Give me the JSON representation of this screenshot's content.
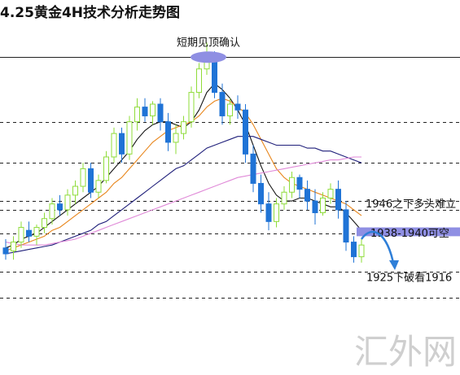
{
  "title": "4.25黄金4H技术分析走势图",
  "watermark": "汇外网",
  "colors": {
    "up": "#8fdc3a",
    "down": "#1f73d6",
    "ma_fast": "#151515",
    "ma_orange": "#e8861c",
    "ma_slow": "#1f1f7a",
    "ma_pink": "#e08ad8",
    "range_band": "#8f8fe3",
    "arrow": "#2f7fd8",
    "level_line": "#222222"
  },
  "chart_data": {
    "type": "candlestick",
    "title": "4.25黄金4H技术分析走势图",
    "xlabel": "",
    "ylabel": "",
    "ylim": [
      1908,
      2010
    ],
    "grid": false,
    "levels": [
      1998,
      1976,
      1962,
      1949,
      1946,
      1938,
      1925,
      1916
    ],
    "candles": [
      {
        "o": 1933,
        "h": 1936,
        "l": 1929,
        "c": 1931
      },
      {
        "o": 1932,
        "h": 1937,
        "l": 1929,
        "c": 1935
      },
      {
        "o": 1935,
        "h": 1942,
        "l": 1933,
        "c": 1940
      },
      {
        "o": 1939,
        "h": 1942,
        "l": 1935,
        "c": 1937
      },
      {
        "o": 1937,
        "h": 1941,
        "l": 1934,
        "c": 1940
      },
      {
        "o": 1940,
        "h": 1945,
        "l": 1938,
        "c": 1943
      },
      {
        "o": 1943,
        "h": 1950,
        "l": 1941,
        "c": 1948
      },
      {
        "o": 1948,
        "h": 1951,
        "l": 1944,
        "c": 1946
      },
      {
        "o": 1946,
        "h": 1953,
        "l": 1944,
        "c": 1951
      },
      {
        "o": 1951,
        "h": 1956,
        "l": 1948,
        "c": 1954
      },
      {
        "o": 1954,
        "h": 1962,
        "l": 1952,
        "c": 1960
      },
      {
        "o": 1960,
        "h": 1962,
        "l": 1950,
        "c": 1952
      },
      {
        "o": 1952,
        "h": 1958,
        "l": 1950,
        "c": 1956
      },
      {
        "o": 1956,
        "h": 1966,
        "l": 1955,
        "c": 1964
      },
      {
        "o": 1964,
        "h": 1974,
        "l": 1962,
        "c": 1972
      },
      {
        "o": 1972,
        "h": 1974,
        "l": 1962,
        "c": 1965
      },
      {
        "o": 1965,
        "h": 1978,
        "l": 1963,
        "c": 1976
      },
      {
        "o": 1976,
        "h": 1984,
        "l": 1973,
        "c": 1981
      },
      {
        "o": 1981,
        "h": 1984,
        "l": 1976,
        "c": 1978
      },
      {
        "o": 1978,
        "h": 1983,
        "l": 1975,
        "c": 1982
      },
      {
        "o": 1982,
        "h": 1984,
        "l": 1973,
        "c": 1976
      },
      {
        "o": 1976,
        "h": 1979,
        "l": 1966,
        "c": 1969
      },
      {
        "o": 1969,
        "h": 1975,
        "l": 1965,
        "c": 1972
      },
      {
        "o": 1972,
        "h": 1978,
        "l": 1970,
        "c": 1976
      },
      {
        "o": 1976,
        "h": 1988,
        "l": 1974,
        "c": 1986
      },
      {
        "o": 1986,
        "h": 1996,
        "l": 1984,
        "c": 1994
      },
      {
        "o": 1994,
        "h": 2003,
        "l": 1992,
        "c": 1998
      },
      {
        "o": 1998,
        "h": 2000,
        "l": 1984,
        "c": 1986
      },
      {
        "o": 1986,
        "h": 1989,
        "l": 1975,
        "c": 1978
      },
      {
        "o": 1978,
        "h": 1984,
        "l": 1975,
        "c": 1982
      },
      {
        "o": 1982,
        "h": 1985,
        "l": 1977,
        "c": 1980
      },
      {
        "o": 1980,
        "h": 1982,
        "l": 1962,
        "c": 1965
      },
      {
        "o": 1965,
        "h": 1968,
        "l": 1952,
        "c": 1955
      },
      {
        "o": 1955,
        "h": 1958,
        "l": 1945,
        "c": 1948
      },
      {
        "o": 1948,
        "h": 1952,
        "l": 1939,
        "c": 1942
      },
      {
        "o": 1942,
        "h": 1950,
        "l": 1940,
        "c": 1948
      },
      {
        "o": 1948,
        "h": 1954,
        "l": 1946,
        "c": 1952
      },
      {
        "o": 1952,
        "h": 1959,
        "l": 1950,
        "c": 1957
      },
      {
        "o": 1957,
        "h": 1958,
        "l": 1950,
        "c": 1953
      },
      {
        "o": 1953,
        "h": 1956,
        "l": 1946,
        "c": 1949
      },
      {
        "o": 1949,
        "h": 1953,
        "l": 1941,
        "c": 1945
      },
      {
        "o": 1945,
        "h": 1952,
        "l": 1944,
        "c": 1950
      },
      {
        "o": 1950,
        "h": 1955,
        "l": 1948,
        "c": 1953
      },
      {
        "o": 1953,
        "h": 1956,
        "l": 1943,
        "c": 1946
      },
      {
        "o": 1946,
        "h": 1949,
        "l": 1932,
        "c": 1935
      },
      {
        "o": 1935,
        "h": 1937,
        "l": 1928,
        "c": 1930
      },
      {
        "o": 1930,
        "h": 1936,
        "l": 1928,
        "c": 1934
      }
    ],
    "series": [
      {
        "style": "ma_fast",
        "values": [
          1933,
          1934,
          1936,
          1937,
          1938,
          1940,
          1942,
          1944,
          1946,
          1948,
          1950,
          1952,
          1954,
          1957,
          1960,
          1963,
          1966,
          1970,
          1973,
          1975,
          1976,
          1976,
          1975,
          1974,
          1976,
          1980,
          1986,
          1989,
          1987,
          1984,
          1980,
          1975,
          1968,
          1961,
          1955,
          1951,
          1949,
          1949,
          1950,
          1950,
          1949,
          1948,
          1947,
          1947,
          1945,
          1942,
          1939
        ]
      },
      {
        "style": "ma_orange",
        "values": [
          1932,
          1933,
          1934,
          1935,
          1936,
          1937,
          1939,
          1940,
          1942,
          1944,
          1946,
          1948,
          1950,
          1952,
          1955,
          1957,
          1960,
          1963,
          1966,
          1969,
          1971,
          1973,
          1974,
          1975,
          1976,
          1978,
          1981,
          1983,
          1984,
          1983,
          1981,
          1979,
          1975,
          1970,
          1965,
          1960,
          1957,
          1955,
          1954,
          1953,
          1952,
          1951,
          1950,
          1949,
          1948,
          1946,
          1944
        ]
      },
      {
        "style": "ma_slow",
        "values": [
          1931,
          1931.5,
          1932,
          1932.5,
          1933,
          1933.5,
          1934,
          1935,
          1936,
          1937,
          1938,
          1939,
          1941,
          1942,
          1944,
          1946,
          1948,
          1950,
          1952,
          1954,
          1956,
          1958,
          1960,
          1961,
          1963,
          1965,
          1967,
          1968,
          1969,
          1970,
          1971,
          1971,
          1971,
          1970,
          1969,
          1968,
          1968,
          1968,
          1968,
          1967,
          1967,
          1966,
          1966,
          1965,
          1964,
          1963,
          1962
        ]
      },
      {
        "style": "ma_pink",
        "values": [
          1935,
          1934.5,
          1934,
          1934,
          1934,
          1934,
          1934.5,
          1935,
          1935.5,
          1936,
          1937,
          1938,
          1939,
          1940,
          1941,
          1942,
          1943,
          1944,
          1945,
          1946,
          1947,
          1948,
          1949,
          1950,
          1951,
          1952,
          1953,
          1954,
          1955,
          1956,
          1957,
          1957.5,
          1958,
          1958.5,
          1959,
          1959.5,
          1960,
          1960.5,
          1961,
          1961.5,
          1962,
          1962.5,
          1963,
          1963,
          1963.5,
          1964,
          1964
        ]
      }
    ],
    "annotations": [
      {
        "text": "短期见顶确认",
        "y": 1998
      },
      {
        "text": "1946之下多头难立",
        "y": 1946
      },
      {
        "text": "1938-1940可空",
        "y": 1938
      },
      {
        "text": "1925下破看1916",
        "y": 1925
      }
    ]
  }
}
